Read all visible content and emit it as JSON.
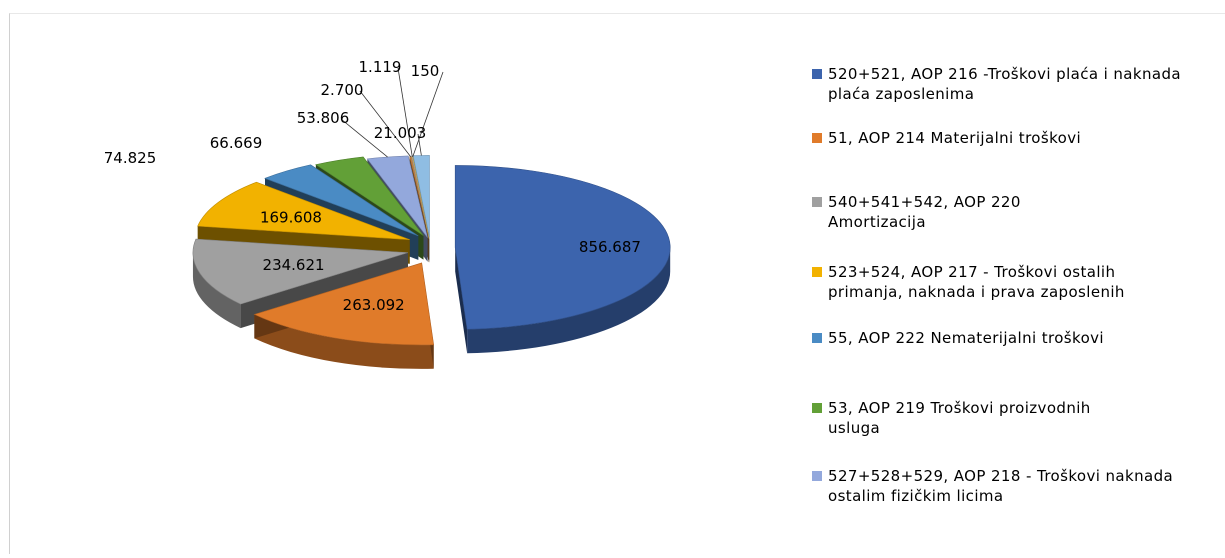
{
  "chart_data": {
    "type": "pie",
    "title": "",
    "slices": [
      {
        "label": "520+521, AOP 216 -Troškovi plaća i naknada plaća zaposlenima",
        "value": 856687,
        "value_label": "856.687",
        "color": "#3c64ad"
      },
      {
        "label": "51, AOP 214  Materijalni troškovi",
        "value": 263092,
        "value_label": "263.092",
        "color": "#e07b2a"
      },
      {
        "label": "540+541+542, AOP 220 Amortizacija",
        "value": 234621,
        "value_label": "234.621",
        "color": "#a0a0a0"
      },
      {
        "label": "523+524, AOP 217 - Troškovi ostalih primanja, naknada i prava zaposlenih",
        "value": 169608,
        "value_label": "169.608",
        "color": "#f2b200"
      },
      {
        "label": "55, AOP 222  Nematerijalni troškovi",
        "value": 74825,
        "value_label": "74.825",
        "color": "#4a8bc4"
      },
      {
        "label": "53, AOP 219  Troškovi proizvodnih usluga",
        "value": 66669,
        "value_label": "66.669",
        "color": "#62a037"
      },
      {
        "label": "527+528+529, AOP 218 - Troškovi naknada ostalim fizičkim licima",
        "value": 53806,
        "value_label": "53.806",
        "color": "#93a8dc"
      },
      {
        "label": "",
        "value": 2700,
        "value_label": "2.700",
        "color": "#c2803f"
      },
      {
        "label": "",
        "value": 1119,
        "value_label": "1.119",
        "color": "#bdbdbd"
      },
      {
        "label": "",
        "value": 150,
        "value_label": "150",
        "color": "#f4c94a"
      },
      {
        "label": "",
        "value": 21003,
        "value_label": "21.003",
        "color": "#8fbde3"
      }
    ],
    "legend_position": "right"
  }
}
